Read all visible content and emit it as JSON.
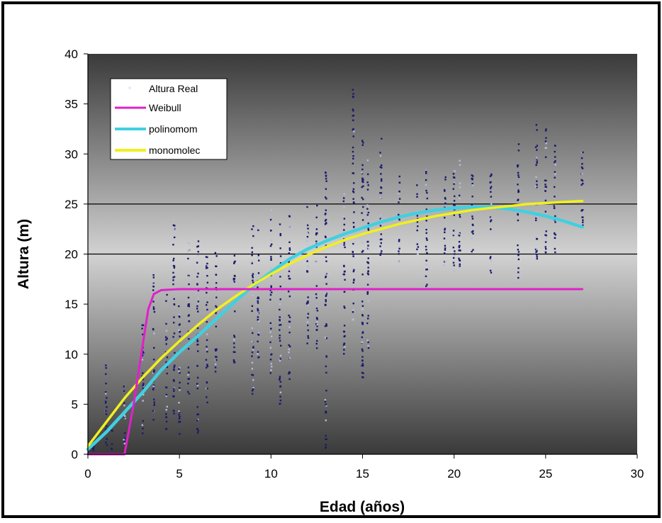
{
  "chart_data": {
    "type": "scatter",
    "xlabel": "Edad (años)",
    "ylabel": "Altura (m)",
    "xlim": [
      0,
      30
    ],
    "ylim": [
      0,
      40
    ],
    "x_ticks": [
      0,
      5,
      10,
      15,
      20,
      25,
      30
    ],
    "y_ticks": [
      0,
      5,
      10,
      15,
      20,
      25,
      30,
      35,
      40
    ],
    "reference_lines_y": [
      20,
      25
    ],
    "legend_position": "top-left",
    "series": [
      {
        "name": "Altura Real",
        "kind": "scatter",
        "color": "#1a1a6e",
        "columns": [
          {
            "x": 0.3,
            "ymin": 0.3,
            "ymax": 1.5
          },
          {
            "x": 1.0,
            "ymin": 0.5,
            "ymax": 9.0
          },
          {
            "x": 1.3,
            "ymin": 0.5,
            "ymax": 3.0
          },
          {
            "x": 2.0,
            "ymin": 0.5,
            "ymax": 7.5
          },
          {
            "x": 3.0,
            "ymin": 2.0,
            "ymax": 13.0
          },
          {
            "x": 3.6,
            "ymin": 3.0,
            "ymax": 18.5
          },
          {
            "x": 4.3,
            "ymin": 2.5,
            "ymax": 16.0
          },
          {
            "x": 4.7,
            "ymin": 4.0,
            "ymax": 23.5
          },
          {
            "x": 5.0,
            "ymin": 2.0,
            "ymax": 15.0
          },
          {
            "x": 5.5,
            "ymin": 6.0,
            "ymax": 21.5
          },
          {
            "x": 6.0,
            "ymin": 2.0,
            "ymax": 21.5
          },
          {
            "x": 6.5,
            "ymin": 5.0,
            "ymax": 20.0
          },
          {
            "x": 7.0,
            "ymin": 8.0,
            "ymax": 21.0
          },
          {
            "x": 8.0,
            "ymin": 9.0,
            "ymax": 20.0
          },
          {
            "x": 9.0,
            "ymin": 6.0,
            "ymax": 23.0
          },
          {
            "x": 9.3,
            "ymin": 8.0,
            "ymax": 22.5
          },
          {
            "x": 10.0,
            "ymin": 8.0,
            "ymax": 24.5
          },
          {
            "x": 10.5,
            "ymin": 4.5,
            "ymax": 23.0
          },
          {
            "x": 11.0,
            "ymin": 7.5,
            "ymax": 24.0
          },
          {
            "x": 12.0,
            "ymin": 11.0,
            "ymax": 25.5
          },
          {
            "x": 12.5,
            "ymin": 10.5,
            "ymax": 25.0
          },
          {
            "x": 13.0,
            "ymin": 0.3,
            "ymax": 29.0
          },
          {
            "x": 14.0,
            "ymin": 10.0,
            "ymax": 26.0
          },
          {
            "x": 14.5,
            "ymin": 13.0,
            "ymax": 37.0
          },
          {
            "x": 15.0,
            "ymin": 7.5,
            "ymax": 32.0
          },
          {
            "x": 15.3,
            "ymin": 10.0,
            "ymax": 30.0
          },
          {
            "x": 16.0,
            "ymin": 19.5,
            "ymax": 32.0
          },
          {
            "x": 17.0,
            "ymin": 18.5,
            "ymax": 28.0
          },
          {
            "x": 18.0,
            "ymin": 19.5,
            "ymax": 27.0
          },
          {
            "x": 18.5,
            "ymin": 16.5,
            "ymax": 28.5
          },
          {
            "x": 19.5,
            "ymin": 18.5,
            "ymax": 28.0
          },
          {
            "x": 20.0,
            "ymin": 18.0,
            "ymax": 30.0
          },
          {
            "x": 20.3,
            "ymin": 18.5,
            "ymax": 29.5
          },
          {
            "x": 21.0,
            "ymin": 20.0,
            "ymax": 29.0
          },
          {
            "x": 22.0,
            "ymin": 17.5,
            "ymax": 28.0
          },
          {
            "x": 23.5,
            "ymin": 17.5,
            "ymax": 31.0
          },
          {
            "x": 24.5,
            "ymin": 19.0,
            "ymax": 33.0
          },
          {
            "x": 25.0,
            "ymin": 20.0,
            "ymax": 32.5
          },
          {
            "x": 25.5,
            "ymin": 19.5,
            "ymax": 31.0
          },
          {
            "x": 27.0,
            "ymin": 22.0,
            "ymax": 31.0
          }
        ]
      },
      {
        "name": "Weibull",
        "kind": "line",
        "color": "#e020c8",
        "x": [
          0,
          2.0,
          2.5,
          3.0,
          3.3,
          3.6,
          4.0,
          5.0,
          10,
          15,
          20,
          25,
          27
        ],
        "y": [
          0,
          0,
          5.0,
          11.0,
          14.5,
          16.0,
          16.4,
          16.5,
          16.5,
          16.5,
          16.5,
          16.5,
          16.5
        ]
      },
      {
        "name": "polinomom",
        "kind": "line",
        "color": "#40d0e0",
        "x": [
          0,
          1,
          2,
          3,
          4,
          5,
          6,
          7,
          8,
          9,
          10,
          11,
          12,
          13,
          14,
          15,
          16,
          17,
          18,
          19,
          20,
          21,
          22,
          23,
          24,
          25,
          26,
          27
        ],
        "y": [
          0.5,
          2.2,
          4.2,
          6.2,
          8.4,
          10.2,
          11.8,
          13.5,
          15.2,
          16.8,
          18.2,
          19.5,
          20.5,
          21.3,
          22.0,
          22.6,
          23.2,
          23.7,
          24.1,
          24.4,
          24.6,
          24.7,
          24.7,
          24.5,
          24.2,
          23.8,
          23.3,
          22.7
        ]
      },
      {
        "name": "monomolec",
        "kind": "line",
        "color": "#f0f020",
        "x": [
          0,
          1,
          2,
          3,
          4,
          5,
          6,
          7,
          8,
          9,
          10,
          11,
          12,
          13,
          14,
          15,
          16,
          17,
          18,
          19,
          20,
          21,
          22,
          23,
          24,
          25,
          26,
          27
        ],
        "y": [
          0.8,
          3.2,
          5.6,
          7.7,
          9.6,
          11.3,
          12.9,
          14.4,
          15.7,
          16.9,
          18.0,
          19.0,
          19.9,
          20.7,
          21.4,
          22.0,
          22.5,
          23.0,
          23.4,
          23.8,
          24.1,
          24.4,
          24.6,
          24.8,
          25.0,
          25.1,
          25.2,
          25.3
        ]
      }
    ]
  }
}
